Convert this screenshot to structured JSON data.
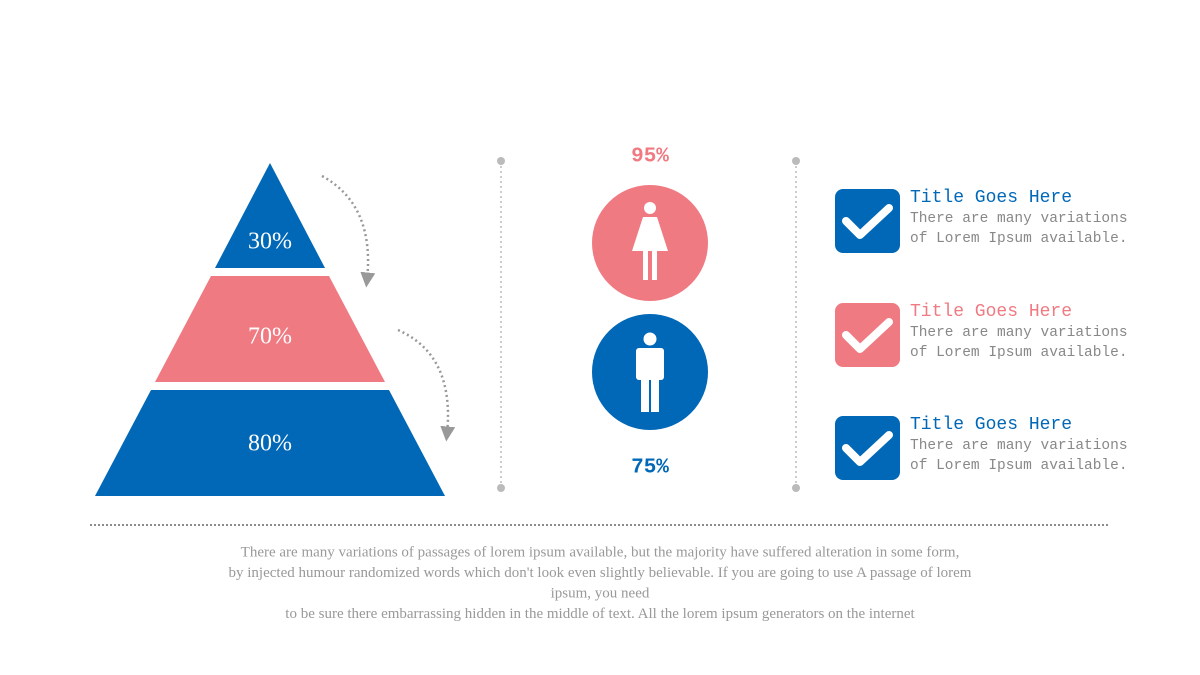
{
  "pyramid": {
    "levels": [
      "30%",
      "70%",
      "80%"
    ]
  },
  "gender": {
    "female": "95%",
    "male": "75%"
  },
  "items": [
    {
      "title": "Title Goes Here",
      "lines": [
        "There are many variations",
        "of Lorem Ipsum available."
      ]
    },
    {
      "title": "Title Goes Here",
      "lines": [
        "There are many variations",
        "of Lorem Ipsum available."
      ]
    },
    {
      "title": "Title Goes Here",
      "lines": [
        "There are many variations",
        "of Lorem Ipsum available."
      ]
    }
  ],
  "footer": {
    "lines": [
      "There are many variations of passages of lorem ipsum available, but the majority have suffered alteration in some form,",
      "by injected humour randomized words which don't look even slightly believable. If you are going to use A passage of lorem",
      "ipsum, you need",
      "to be sure there embarrassing hidden in the middle of text. All the lorem ipsum generators on the internet"
    ]
  }
}
